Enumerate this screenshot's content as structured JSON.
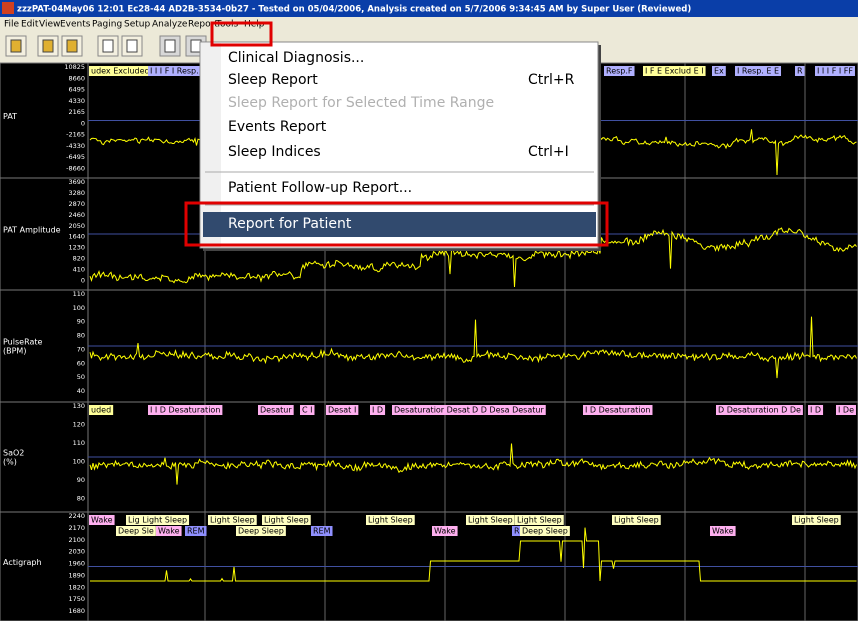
{
  "window": {
    "title": "zzzPAT-04May06 12:01 Ec28-44 AD2B-3534-0b27 - Tested on 05/04/2006, Analysis created on 5/7/2006 9:34:45 AM by Super User (Reviewed)"
  },
  "menu_bar": [
    "File",
    "Edit",
    "View",
    "Events",
    "Paging",
    "Setup",
    "Analyze",
    "Report",
    "Tools",
    "Help"
  ],
  "report_menu": {
    "items": [
      {
        "label": "Clinical Diagnosis..."
      },
      {
        "label": "Sleep Report",
        "shortcut": "Ctrl+R"
      },
      {
        "label": "Sleep Report for Selected Time Range"
      },
      {
        "label": "Events Report"
      },
      {
        "label": "Sleep Indices",
        "shortcut": "Ctrl+I"
      },
      {
        "label": "Patient Follow-up Report..."
      },
      {
        "label": "Report for Patient"
      }
    ]
  },
  "channels": [
    {
      "name": [
        "PAT"
      ],
      "ticks": [
        "10825",
        "8660",
        "6495",
        "4330",
        "2165",
        "0",
        "-2165",
        "-4330",
        "-6495",
        "-8660"
      ],
      "events": [
        "udex Excluded",
        "I I I F I Resp.",
        "Resp.F",
        "I F E Exclud E I",
        "Ex",
        "I Resp. E E",
        "R",
        "I I I F I FF"
      ]
    },
    {
      "name": [
        "PAT Amplitude"
      ],
      "ticks": [
        "3690",
        "3280",
        "2870",
        "2460",
        "2050",
        "1640",
        "1230",
        "820",
        "410",
        "0"
      ],
      "events": []
    },
    {
      "name": [
        "PulseRate",
        "(BPM)"
      ],
      "ticks": [
        "110",
        "100",
        "90",
        "80",
        "70",
        "60",
        "50",
        "40"
      ],
      "events": []
    },
    {
      "name": [
        "SaO2",
        "(%)"
      ],
      "ticks": [
        "130",
        "120",
        "110",
        "100",
        "90",
        "80"
      ],
      "events": [
        "uded",
        "I I D Desaturation",
        "Desatur",
        "C I",
        "Desat",
        "I",
        "I D",
        "Desaturatior Desatur",
        "D D Desa Desatur",
        "I D Desaturation",
        "D Desaturation D De",
        "I D",
        "I De"
      ]
    },
    {
      "name": [
        "Actigraph"
      ],
      "ticks": [
        "2240",
        "2170",
        "2100",
        "2030",
        "1960",
        "1890",
        "1820",
        "1750",
        "1680"
      ],
      "events": [
        "Wake",
        "Lig Light Sleep",
        "Light Sleep",
        "Light Sleep",
        "Light Sleep",
        "Light Sleep",
        "Light Sleep",
        "Light Sleep",
        "Light Sleep",
        "Deep Sle",
        "Wake",
        "REM",
        "Deep Sleep",
        "REM",
        "Wake",
        "REM",
        "Deep Sleep",
        "Wake"
      ]
    }
  ]
}
